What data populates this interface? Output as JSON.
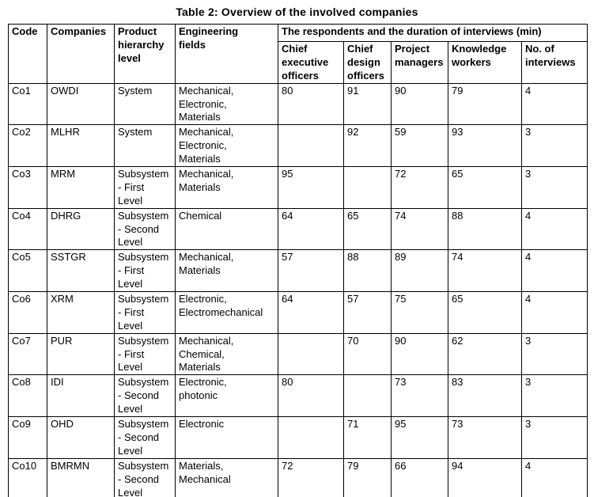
{
  "title": "Table 2: Overview of the involved companies",
  "table": {
    "columns": [
      "Code",
      "Companies",
      "Product\nhierarchy\nlevel",
      "Engineering\nfields"
    ],
    "respondents_header": "The respondents and the duration of interviews (min)",
    "respondent_columns": [
      "Chief\nexecutive\nofficers",
      "Chief\ndesign\nofficers",
      "Project\nmanagers",
      "Knowledge\nworkers",
      "No. of\ninterviews"
    ],
    "rows": [
      {
        "code": "Co1",
        "company": "OWDI",
        "hierarchy": "System",
        "fields": "Mechanical,\nElectronic,\nMaterials",
        "ceo": "80",
        "cdo": "91",
        "pm": "90",
        "kw": "79",
        "num": "4"
      },
      {
        "code": "Co2",
        "company": "MLHR",
        "hierarchy": "System",
        "fields": "Mechanical,\nElectronic,\nMaterials",
        "ceo": "",
        "cdo": "92",
        "pm": "59",
        "kw": "93",
        "num": "3"
      },
      {
        "code": "Co3",
        "company": "MRM",
        "hierarchy": "Subsystem\n- First\nLevel",
        "fields": "Mechanical,\nMaterials",
        "ceo": "95",
        "cdo": "",
        "pm": "72",
        "kw": "65",
        "num": "3"
      },
      {
        "code": "Co4",
        "company": "DHRG",
        "hierarchy": "Subsystem\n- Second\nLevel",
        "fields": "Chemical",
        "ceo": "64",
        "cdo": "65",
        "pm": "74",
        "kw": "88",
        "num": "4"
      },
      {
        "code": "Co5",
        "company": "SSTGR",
        "hierarchy": "Subsystem\n- First\nLevel",
        "fields": "Mechanical,\nMaterials",
        "ceo": "57",
        "cdo": "88",
        "pm": "89",
        "kw": "74",
        "num": "4"
      },
      {
        "code": "Co6",
        "company": "XRM",
        "hierarchy": "Subsystem\n- First\nLevel",
        "fields": "Electronic,\nElectromechanical",
        "ceo": "64",
        "cdo": "57",
        "pm": "75",
        "kw": "65",
        "num": "4"
      },
      {
        "code": "Co7",
        "company": "PUR",
        "hierarchy": "Subsystem\n- First\nLevel",
        "fields": "Mechanical,\nChemical,\nMaterials",
        "ceo": "",
        "cdo": "70",
        "pm": "90",
        "kw": "62",
        "num": "3"
      },
      {
        "code": "Co8",
        "company": "IDI",
        "hierarchy": "Subsystem\n- Second\nLevel",
        "fields": "Electronic,\nphotonic",
        "ceo": "80",
        "cdo": "",
        "pm": "73",
        "kw": "83",
        "num": "3"
      },
      {
        "code": "Co9",
        "company": "OHD",
        "hierarchy": "Subsystem\n- Second\nLevel",
        "fields": "Electronic",
        "ceo": "",
        "cdo": "71",
        "pm": "95",
        "kw": "73",
        "num": "3"
      },
      {
        "code": "Co10",
        "company": "BMRMN",
        "hierarchy": "Subsystem\n- Second\nLevel",
        "fields": "Materials,\nMechanical",
        "ceo": "72",
        "cdo": "79",
        "pm": "66",
        "kw": "94",
        "num": "4"
      }
    ]
  }
}
